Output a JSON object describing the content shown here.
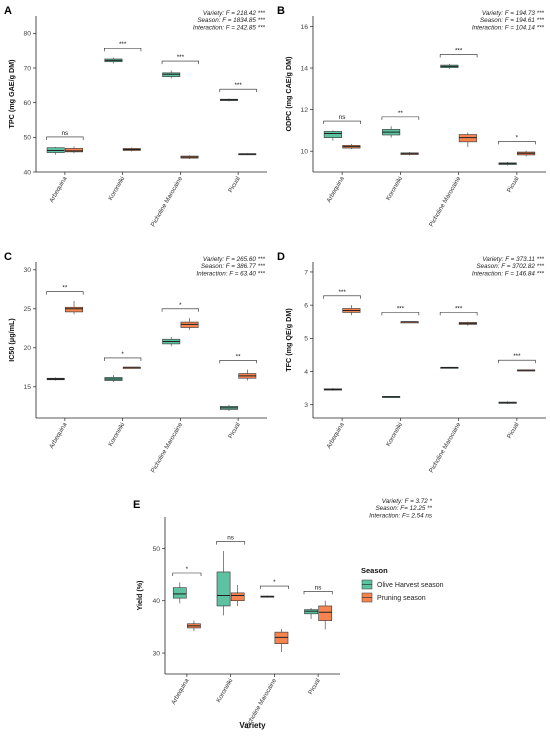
{
  "colors": {
    "olive": "#5cc2a1",
    "pruning": "#f7844f"
  },
  "legend": {
    "title": "Season",
    "items": [
      {
        "label": "Olive Harvest season",
        "color": "#5cc2a1"
      },
      {
        "label": "Pruning season",
        "color": "#f7844f"
      }
    ]
  },
  "chart_data": [
    {
      "panel": "A",
      "type": "box",
      "categories": [
        "Arbequina",
        "Koroneiki",
        "Picholine Marocaine",
        "Picual"
      ],
      "ylabel": "TPC (mg GAE/g DM)",
      "ylim": [
        40,
        85
      ],
      "yticks": [
        40,
        50,
        60,
        70,
        80
      ],
      "stats": [
        "Variety: F = 218.42 ***",
        "Season: F = 1834.85 ***",
        "Interaction: F = 242.85 ***"
      ],
      "significance": [
        "ns",
        "***",
        "***",
        "***"
      ],
      "series": [
        {
          "name": "Olive Harvest season",
          "boxes": [
            [
              45,
              45.6,
              46.2,
              47,
              47.2
            ],
            [
              71.3,
              71.8,
              72.2,
              72.6,
              73
            ],
            [
              67,
              67.5,
              68.2,
              68.6,
              69.3
            ],
            [
              60.4,
              60.6,
              60.8,
              61,
              61.2
            ]
          ]
        },
        {
          "name": "Pruning season",
          "boxes": [
            [
              45.4,
              45.8,
              46.1,
              46.8,
              47.4
            ],
            [
              45.9,
              46.2,
              46.5,
              46.8,
              47.1
            ],
            [
              43.8,
              44,
              44.3,
              44.6,
              44.8
            ],
            [
              45,
              45.1,
              45.2,
              45.3,
              45.4
            ]
          ]
        }
      ]
    },
    {
      "panel": "B",
      "type": "box",
      "categories": [
        "Arbequina",
        "Koroneiki",
        "Picholine Marocaine",
        "Picual"
      ],
      "ylabel": "ODPC (mg CAE/g DM)",
      "ylim": [
        9,
        16.5
      ],
      "yticks": [
        10,
        12,
        14,
        16
      ],
      "stats": [
        "Variety: F = 194.73 ***",
        "Season: F = 194.61 ***",
        "Interaction: F = 104.14 ***"
      ],
      "significance": [
        "ns",
        "**",
        "***",
        "*"
      ],
      "series": [
        {
          "name": "Olive Harvest season",
          "boxes": [
            [
              10.5,
              10.65,
              10.85,
              10.95,
              11
            ],
            [
              10.65,
              10.78,
              10.92,
              11.05,
              11.2
            ],
            [
              13.95,
              14.02,
              14.08,
              14.14,
              14.2
            ],
            [
              9.32,
              9.36,
              9.4,
              9.44,
              9.48
            ]
          ]
        },
        {
          "name": "Pruning season",
          "boxes": [
            [
              10.1,
              10.15,
              10.22,
              10.28,
              10.35
            ],
            [
              9.8,
              9.84,
              9.88,
              9.92,
              9.96
            ],
            [
              10.2,
              10.45,
              10.65,
              10.8,
              10.9
            ],
            [
              9.75,
              9.82,
              9.9,
              9.96,
              10.02
            ]
          ]
        }
      ]
    },
    {
      "panel": "C",
      "type": "box",
      "categories": [
        "Arbequina",
        "Koroneiki",
        "Picholine Marocaine",
        "Picual"
      ],
      "ylabel": "IC50 (μg/mL)",
      "ylim": [
        11,
        31
      ],
      "yticks": [
        15,
        20,
        25,
        30
      ],
      "stats": [
        "Variety: F = 265.60 ***",
        "Season: F = 386.77 ***",
        "Interaction: F = 63.40 ***"
      ],
      "significance": [
        "**",
        "*",
        "*",
        "**"
      ],
      "series": [
        {
          "name": "Olive Harvest season",
          "boxes": [
            [
              15.8,
              15.9,
              16,
              16.1,
              16.2
            ],
            [
              15.6,
              15.8,
              16,
              16.2,
              16.5
            ],
            [
              20.2,
              20.5,
              20.8,
              21.1,
              21.4
            ],
            [
              11.9,
              12.1,
              12.3,
              12.5,
              12.7
            ]
          ]
        },
        {
          "name": "Pruning season",
          "boxes": [
            [
              24.3,
              24.6,
              25,
              25.2,
              26
            ],
            [
              17.5,
              17.5,
              17.5,
              17.5,
              17.5
            ],
            [
              22.3,
              22.6,
              23,
              23.3,
              23.8
            ],
            [
              15.8,
              16.1,
              16.4,
              16.7,
              17.2
            ]
          ]
        }
      ]
    },
    {
      "panel": "D",
      "type": "box",
      "categories": [
        "Arbequina",
        "Koroneiki",
        "Picholine Marocaine",
        "Picual"
      ],
      "ylabel": "TFC (mg QE/g DM)",
      "ylim": [
        2.6,
        7.3
      ],
      "yticks": [
        3,
        4,
        5,
        6,
        7
      ],
      "stats": [
        "Variety: F = 373.11 ***",
        "Season: F = 3702.82 ***",
        "Interaction: F = 146.84 ***"
      ],
      "significance": [
        "***",
        "***",
        "***",
        "***"
      ],
      "series": [
        {
          "name": "Olive Harvest season",
          "boxes": [
            [
              3.42,
              3.44,
              3.46,
              3.48,
              3.5
            ],
            [
              3.22,
              3.23,
              3.24,
              3.25,
              3.26
            ],
            [
              4.1,
              4.11,
              4.12,
              4.13,
              4.14
            ],
            [
              3.02,
              3.04,
              3.06,
              3.08,
              3.1
            ]
          ]
        },
        {
          "name": "Pruning season",
          "boxes": [
            [
              5.7,
              5.78,
              5.84,
              5.9,
              6
            ],
            [
              5.5,
              5.5,
              5.5,
              5.5,
              5.5
            ],
            [
              5.38,
              5.42,
              5.45,
              5.48,
              5.5
            ],
            [
              4.02,
              4.03,
              4.04,
              4.05,
              4.06
            ]
          ]
        }
      ]
    },
    {
      "panel": "E",
      "type": "box",
      "categories": [
        "Arbequina",
        "Koroneiki",
        "Picholine Marocaine",
        "Picual"
      ],
      "xlabel": "Variety",
      "ylabel": "Yield (%)",
      "ylim": [
        26,
        56
      ],
      "yticks": [
        30,
        40,
        50
      ],
      "stats": [
        "Variety: F = 3.72 *",
        "Season: F= 12.25 **",
        "Interaction: F= 2.54 ns"
      ],
      "significance": [
        "*",
        "ns",
        "*",
        "ns"
      ],
      "series": [
        {
          "name": "Olive Harvest season",
          "boxes": [
            [
              39.5,
              40.5,
              41.3,
              42.5,
              43.5
            ],
            [
              37.2,
              39,
              41,
              45.5,
              49.5
            ],
            [
              40.6,
              40.7,
              40.8,
              40.9,
              41
            ],
            [
              36.5,
              37.5,
              38,
              38.3,
              38.6
            ]
          ]
        },
        {
          "name": "Pruning season",
          "boxes": [
            [
              34.2,
              34.8,
              35.2,
              35.6,
              36.2
            ],
            [
              39,
              40,
              41,
              41.5,
              43
            ],
            [
              30.2,
              31.8,
              33,
              34,
              34.6
            ],
            [
              34.5,
              36.2,
              37.8,
              39,
              40
            ]
          ]
        }
      ]
    }
  ]
}
